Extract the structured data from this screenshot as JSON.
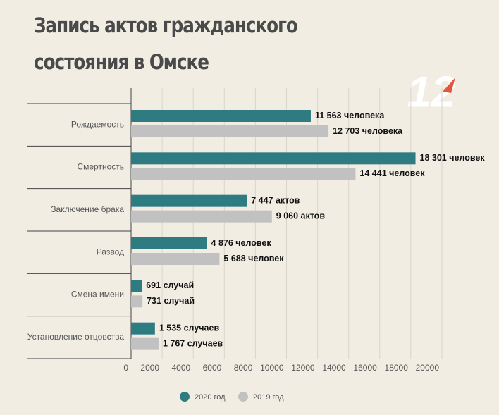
{
  "chart_data": {
    "type": "bar",
    "orientation": "horizontal",
    "title": "Запись актов гражданского состояния в Омске",
    "logo": "12",
    "categories": [
      "Рождаемость",
      "Смертность",
      "Заключение брака",
      "Развод",
      "Смена имени",
      "Установление отцовства"
    ],
    "series": [
      {
        "name": "2020 год",
        "color": "#2e7c82",
        "values": [
          11563,
          18301,
          7447,
          4876,
          691,
          1535
        ],
        "value_labels": [
          "11 563 человека",
          "18 301 человек",
          "7 447 актов",
          "4 876 человек",
          "691 случай",
          "1 535 случаев"
        ]
      },
      {
        "name": "2019 год",
        "color": "#c1c1c1",
        "values": [
          12703,
          14441,
          9060,
          5688,
          731,
          1767
        ],
        "value_labels": [
          "12 703 человека",
          "14 441 человек",
          "9 060 актов",
          "5 688 человек",
          "731 случай",
          "1 767 случаев"
        ]
      }
    ],
    "xlim": [
      0,
      20000
    ],
    "xticks": [
      0,
      2000,
      4000,
      6000,
      8000,
      10000,
      12000,
      14000,
      16000,
      18000,
      20000
    ],
    "grid": true,
    "legend": "bottom"
  }
}
